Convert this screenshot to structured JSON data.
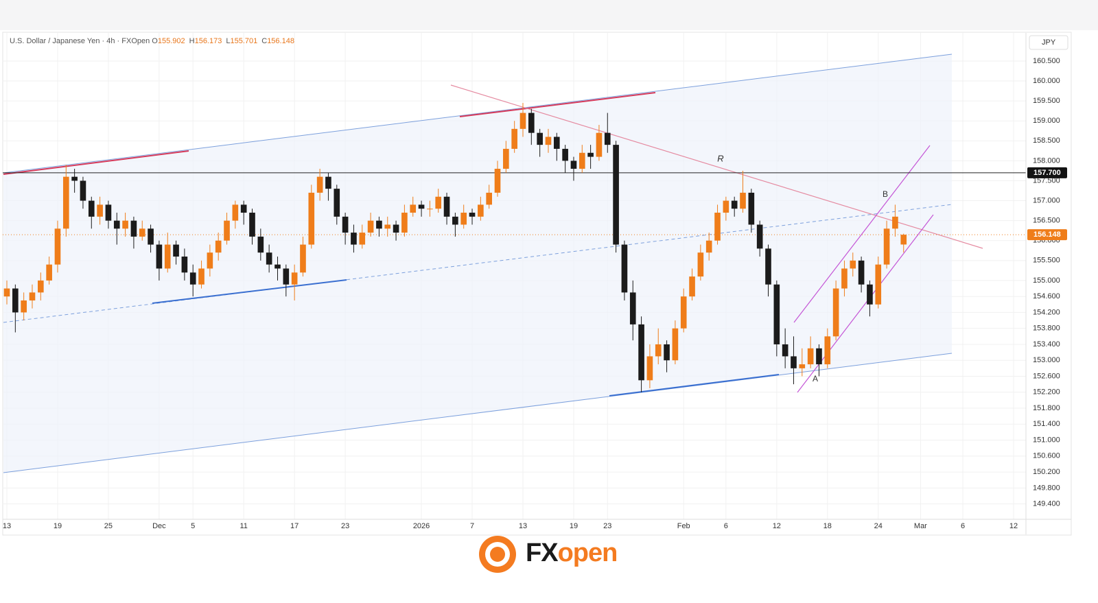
{
  "chart_data": {
    "type": "candlestick",
    "title": "U.S. Dollar / Japanese Yen · 4h · FXOpen",
    "header": [
      {
        "label": "O",
        "value": 155.902
      },
      {
        "label": "H",
        "value": 156.173
      },
      {
        "label": "L",
        "value": 155.701
      },
      {
        "label": "C",
        "value": 156.148
      }
    ],
    "currency": "JPY",
    "categories": [
      "13",
      null,
      null,
      null,
      null,
      null,
      "19",
      null,
      null,
      null,
      null,
      null,
      "25",
      null,
      null,
      null,
      null,
      null,
      "Dec",
      null,
      null,
      null,
      "5",
      null,
      null,
      null,
      null,
      null,
      "11",
      null,
      null,
      null,
      null,
      null,
      "17",
      null,
      null,
      null,
      null,
      null,
      "23",
      null,
      null,
      null,
      null,
      null,
      null,
      null,
      null,
      "2026",
      null,
      null,
      null,
      null,
      null,
      "7",
      null,
      null,
      null,
      null,
      null,
      "13",
      null,
      null,
      null,
      null,
      null,
      "19",
      null,
      null,
      null,
      "23",
      null,
      null,
      null,
      null,
      null,
      null,
      null,
      null,
      "Feb",
      null,
      null,
      null,
      null,
      "6",
      null,
      null,
      null,
      null,
      null,
      "12",
      null,
      null,
      null,
      null,
      null,
      "18",
      null,
      null,
      null,
      null,
      null,
      "24",
      null,
      null,
      null,
      null,
      "Mar",
      null,
      null,
      null,
      null,
      "6",
      null,
      null,
      null,
      null,
      null,
      "12"
    ],
    "ohlc": [
      [
        154.6,
        155.0,
        154.4,
        154.8
      ],
      [
        154.8,
        154.9,
        153.7,
        154.2
      ],
      [
        154.2,
        154.7,
        154.0,
        154.5
      ],
      [
        154.5,
        154.9,
        154.3,
        154.7
      ],
      [
        154.7,
        155.2,
        154.5,
        155.0
      ],
      [
        155.0,
        155.6,
        154.9,
        155.4
      ],
      [
        155.4,
        156.5,
        155.2,
        156.3
      ],
      [
        156.3,
        157.9,
        156.1,
        157.6
      ],
      [
        157.6,
        157.8,
        157.2,
        157.5
      ],
      [
        157.5,
        157.6,
        156.8,
        157.0
      ],
      [
        157.0,
        157.1,
        156.3,
        156.6
      ],
      [
        156.6,
        157.1,
        156.4,
        156.9
      ],
      [
        156.9,
        157.0,
        156.3,
        156.5
      ],
      [
        156.5,
        156.7,
        155.9,
        156.3
      ],
      [
        156.3,
        156.7,
        156.1,
        156.5
      ],
      [
        156.5,
        156.6,
        155.8,
        156.1
      ],
      [
        156.1,
        156.5,
        156.0,
        156.3
      ],
      [
        156.3,
        156.4,
        155.7,
        155.9
      ],
      [
        155.9,
        156.0,
        155.0,
        155.3
      ],
      [
        155.3,
        156.2,
        155.2,
        155.9
      ],
      [
        155.9,
        156.0,
        155.4,
        155.6
      ],
      [
        155.6,
        155.8,
        155.0,
        155.2
      ],
      [
        155.2,
        155.4,
        154.6,
        154.9
      ],
      [
        154.9,
        155.5,
        154.8,
        155.3
      ],
      [
        155.3,
        155.9,
        155.1,
        155.7
      ],
      [
        155.7,
        156.2,
        155.5,
        156.0
      ],
      [
        156.0,
        156.7,
        155.9,
        156.5
      ],
      [
        156.5,
        157.0,
        156.3,
        156.9
      ],
      [
        156.9,
        157.0,
        156.4,
        156.7
      ],
      [
        156.7,
        156.8,
        155.9,
        156.1
      ],
      [
        156.1,
        156.3,
        155.5,
        155.7
      ],
      [
        155.7,
        155.9,
        155.2,
        155.4
      ],
      [
        155.4,
        155.6,
        155.0,
        155.3
      ],
      [
        155.3,
        155.4,
        154.6,
        154.9
      ],
      [
        154.9,
        155.4,
        154.5,
        155.2
      ],
      [
        155.2,
        156.1,
        155.1,
        155.9
      ],
      [
        155.9,
        157.4,
        155.8,
        157.2
      ],
      [
        157.2,
        157.8,
        157.0,
        157.6
      ],
      [
        157.6,
        157.7,
        157.0,
        157.3
      ],
      [
        157.3,
        157.4,
        156.4,
        156.6
      ],
      [
        156.6,
        156.7,
        155.9,
        156.2
      ],
      [
        156.2,
        156.4,
        155.7,
        155.9
      ],
      [
        155.9,
        156.4,
        155.8,
        156.2
      ],
      [
        156.2,
        156.7,
        156.1,
        156.5
      ],
      [
        156.5,
        156.6,
        156.1,
        156.3
      ],
      [
        156.3,
        156.6,
        156.1,
        156.4
      ],
      [
        156.4,
        156.5,
        156.0,
        156.2
      ],
      [
        156.2,
        156.9,
        156.1,
        156.7
      ],
      [
        156.7,
        157.1,
        156.6,
        156.9
      ],
      [
        156.9,
        157.0,
        156.6,
        156.8
      ],
      [
        156.8,
        157.0,
        156.6,
        156.8
      ],
      [
        156.8,
        157.3,
        156.7,
        157.1
      ],
      [
        157.1,
        157.2,
        156.4,
        156.6
      ],
      [
        156.6,
        156.7,
        156.1,
        156.4
      ],
      [
        156.4,
        156.9,
        156.3,
        156.7
      ],
      [
        156.7,
        156.8,
        156.4,
        156.6
      ],
      [
        156.6,
        157.1,
        156.5,
        156.9
      ],
      [
        156.9,
        157.4,
        156.8,
        157.2
      ],
      [
        157.2,
        158.0,
        157.1,
        157.8
      ],
      [
        157.8,
        158.5,
        157.7,
        158.3
      ],
      [
        158.3,
        159.0,
        158.2,
        158.8
      ],
      [
        158.8,
        159.45,
        158.6,
        159.2
      ],
      [
        159.2,
        159.3,
        158.4,
        158.7
      ],
      [
        158.7,
        158.8,
        158.1,
        158.4
      ],
      [
        158.4,
        158.8,
        158.2,
        158.6
      ],
      [
        158.6,
        158.7,
        158.0,
        158.3
      ],
      [
        158.3,
        158.4,
        157.7,
        158.0
      ],
      [
        158.0,
        158.1,
        157.5,
        157.8
      ],
      [
        157.8,
        158.4,
        157.7,
        158.2
      ],
      [
        158.2,
        158.4,
        157.8,
        158.1
      ],
      [
        158.1,
        158.9,
        158.0,
        158.7
      ],
      [
        158.7,
        159.2,
        158.2,
        158.4
      ],
      [
        158.4,
        158.5,
        155.7,
        155.9
      ],
      [
        155.9,
        156.0,
        154.5,
        154.7
      ],
      [
        154.7,
        155.0,
        153.5,
        153.9
      ],
      [
        153.9,
        154.1,
        152.2,
        152.5
      ],
      [
        152.5,
        153.4,
        152.3,
        153.1
      ],
      [
        153.1,
        153.8,
        152.9,
        153.4
      ],
      [
        153.4,
        153.5,
        152.7,
        153.0
      ],
      [
        153.0,
        154.0,
        152.9,
        153.8
      ],
      [
        153.8,
        154.8,
        153.7,
        154.6
      ],
      [
        154.6,
        155.3,
        154.5,
        155.1
      ],
      [
        155.1,
        155.9,
        155.0,
        155.7
      ],
      [
        155.7,
        156.2,
        155.5,
        156.0
      ],
      [
        156.0,
        156.9,
        155.9,
        156.7
      ],
      [
        156.7,
        157.1,
        156.5,
        157.0
      ],
      [
        157.0,
        157.1,
        156.6,
        156.8
      ],
      [
        156.8,
        157.75,
        156.7,
        157.2
      ],
      [
        157.2,
        157.3,
        156.2,
        156.4
      ],
      [
        156.4,
        156.5,
        155.6,
        155.8
      ],
      [
        155.8,
        155.9,
        154.6,
        154.9
      ],
      [
        154.9,
        155.0,
        153.1,
        153.4
      ],
      [
        153.4,
        153.8,
        152.8,
        153.1
      ],
      [
        153.1,
        153.6,
        152.4,
        152.8
      ],
      [
        152.8,
        153.3,
        152.6,
        152.9
      ],
      [
        152.9,
        153.6,
        152.8,
        153.3
      ],
      [
        153.3,
        153.4,
        152.6,
        152.9
      ],
      [
        152.9,
        153.8,
        152.8,
        153.6
      ],
      [
        153.6,
        155.0,
        153.5,
        154.8
      ],
      [
        154.8,
        155.5,
        154.6,
        155.3
      ],
      [
        155.3,
        155.7,
        155.1,
        155.5
      ],
      [
        155.5,
        155.6,
        154.7,
        154.9
      ],
      [
        154.9,
        155.0,
        154.1,
        154.4
      ],
      [
        154.4,
        155.6,
        154.3,
        155.4
      ],
      [
        155.4,
        156.5,
        155.3,
        156.3
      ],
      [
        156.3,
        156.9,
        156.1,
        156.6
      ],
      [
        155.902,
        156.173,
        155.701,
        156.148
      ],
      null,
      null,
      null,
      null,
      null,
      null,
      null,
      null,
      null,
      null,
      null,
      null,
      null
    ],
    "up_color": "#ef7d1a",
    "down_color": "#1b1b1b",
    "ylim": [
      149.05,
      161.17
    ],
    "yticks": [
      {
        "value": 160.5,
        "label": "160.500"
      },
      {
        "value": 160,
        "label": "160.000"
      },
      {
        "value": 159.5,
        "label": "159.500"
      },
      {
        "value": 159,
        "label": "159.000"
      },
      {
        "value": 158.5,
        "label": "158.500"
      },
      {
        "value": 158,
        "label": "158.000"
      },
      {
        "value": 157.5,
        "label": "157.500"
      },
      {
        "value": 157,
        "label": "157.000"
      },
      {
        "value": 156.5,
        "label": "156.500"
      },
      {
        "value": 156,
        "label": "156.000"
      },
      {
        "value": 155.5,
        "label": "155.500"
      },
      {
        "value": 155,
        "label": "155.000"
      },
      {
        "value": 154.6,
        "label": "154.600"
      },
      {
        "value": 154.2,
        "label": "154.200"
      },
      {
        "value": 153.8,
        "label": "153.800"
      },
      {
        "value": 153.4,
        "label": "153.400"
      },
      {
        "value": 153,
        "label": "153.000"
      },
      {
        "value": 152.6,
        "label": "152.600"
      },
      {
        "value": 152.2,
        "label": "152.200"
      },
      {
        "value": 151.8,
        "label": "151.800"
      },
      {
        "value": 151.4,
        "label": "151.400"
      },
      {
        "value": 151,
        "label": "151.000"
      },
      {
        "value": 150.6,
        "label": "150.600"
      },
      {
        "value": 150.2,
        "label": "150.200"
      },
      {
        "value": 149.8,
        "label": "149.800"
      },
      {
        "value": 149.4,
        "label": "149.400"
      }
    ],
    "grid": true,
    "level": {
      "value": 157.7,
      "label": "157.700"
    },
    "last_price": {
      "value": 156.148,
      "label": "156.148"
    },
    "annotations": [
      "R",
      "A",
      "B"
    ]
  },
  "logo": {
    "part1": "FX",
    "part2": "open"
  }
}
